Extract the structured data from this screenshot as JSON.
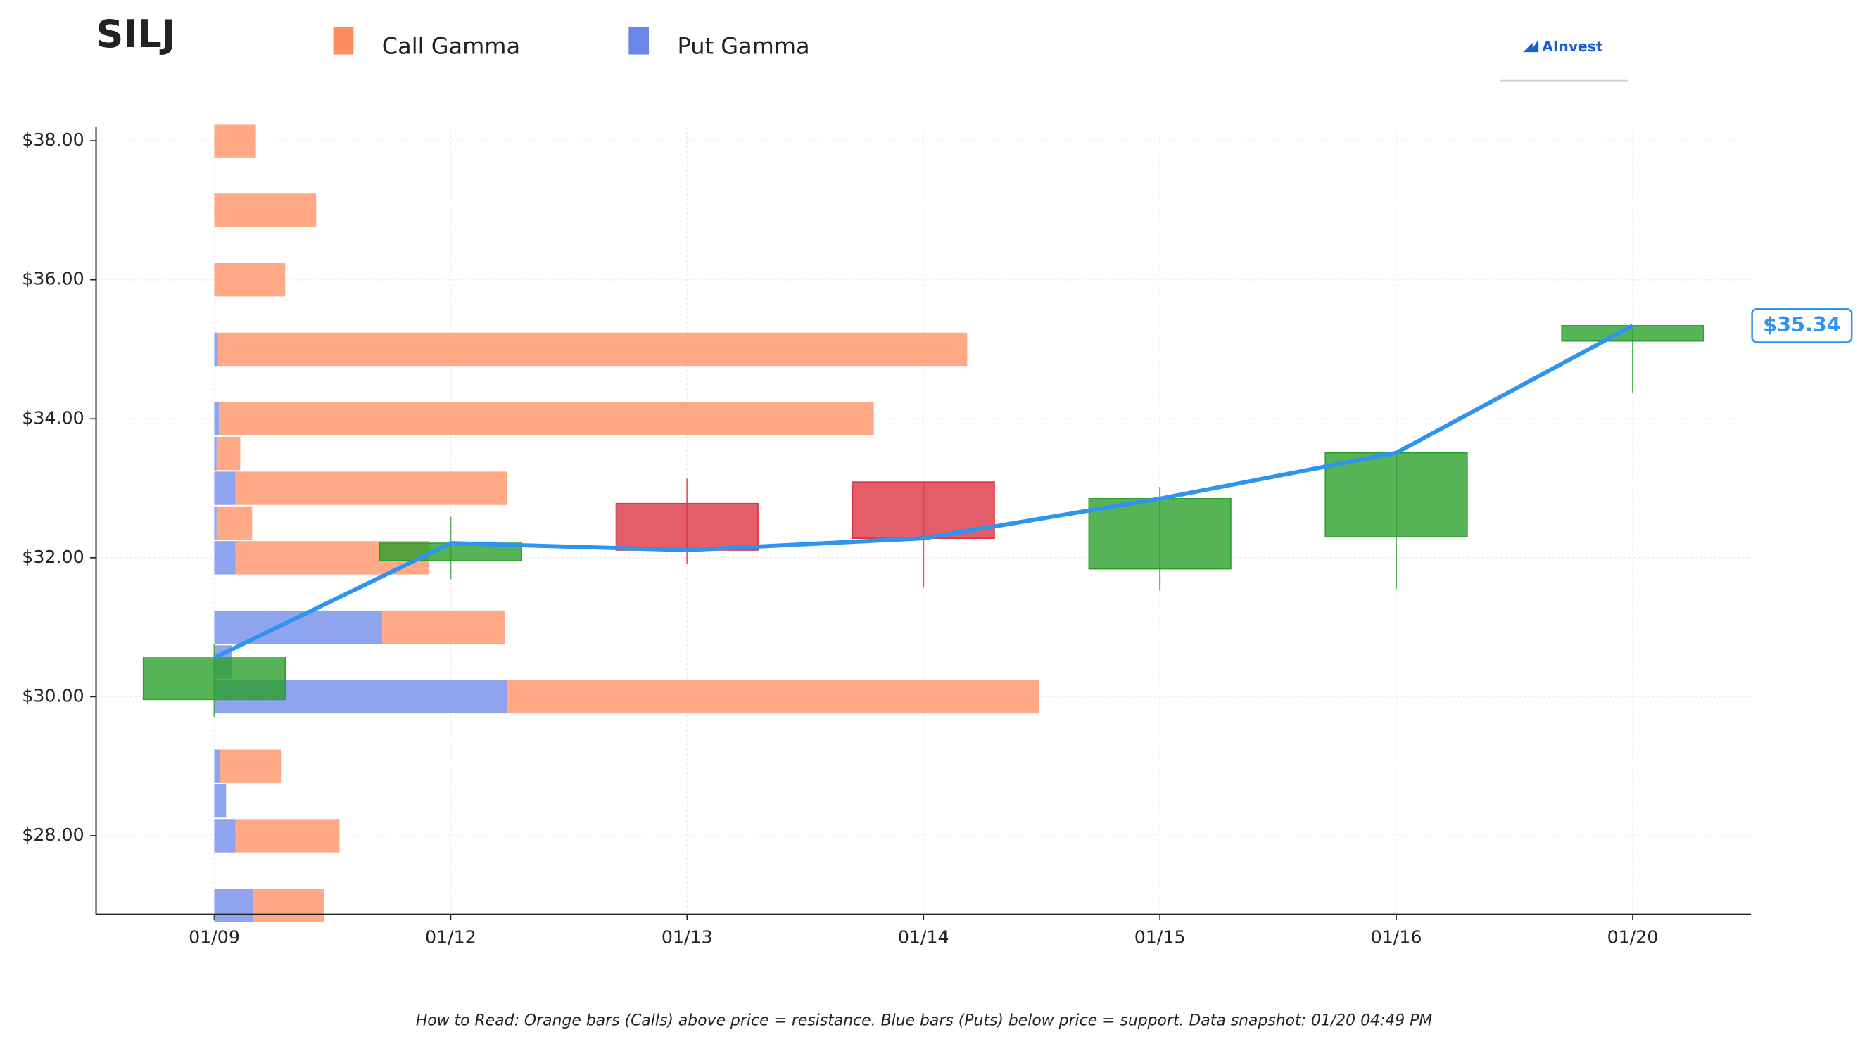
{
  "chart_data": {
    "type": "candlestick",
    "title": "SILJ",
    "brand": "AInvest",
    "footnote": "How to Read: Orange bars (Calls) above price = resistance. Blue bars (Puts) below price = support. Data snapshot: 01/20 04:49 PM",
    "categories": [
      "01/09",
      "01/12",
      "01/13",
      "01/14",
      "01/15",
      "01/16",
      "01/20"
    ],
    "open": [
      29.96,
      31.96,
      32.78,
      33.09,
      31.84,
      32.3,
      35.12
    ],
    "high": [
      30.76,
      32.59,
      33.14,
      33.09,
      33.02,
      33.51,
      35.34
    ],
    "low": [
      29.71,
      31.69,
      31.91,
      31.57,
      31.53,
      31.55,
      34.37
    ],
    "close": [
      30.56,
      32.21,
      32.11,
      32.28,
      32.85,
      33.51,
      35.34
    ],
    "last_label": "$35.34",
    "up_color": "#2ca02c",
    "down_color": "#dc3545",
    "line_color": "#2f93f0",
    "gamma": {
      "strikes": [
        38,
        37,
        36,
        35,
        34,
        33.5,
        33,
        32.5,
        32,
        31,
        30.5,
        30,
        29,
        28.5,
        28,
        27
      ],
      "series": [
        {
          "name": "Call Gamma",
          "color": "#ff8c5f",
          "values": [
            0.176,
            0.431,
            0.3,
            3.17,
            2.77,
            0.1,
            1.15,
            0.15,
            0.82,
            0.52,
            0,
            2.25,
            0.26,
            0,
            0.44,
            0.3
          ]
        },
        {
          "name": "Put Gamma",
          "color": "#6a86e8",
          "values": [
            0,
            0,
            0,
            0.015,
            0.02,
            0.01,
            0.09,
            0.01,
            0.09,
            0.71,
            0.075,
            1.24,
            0.025,
            0.05,
            0.09,
            0.165
          ]
        }
      ]
    },
    "ylim": [
      26.87,
      38.2
    ],
    "yticks": [
      {
        "value": 28,
        "label": "$28.00"
      },
      {
        "value": 30,
        "label": "$30.00"
      },
      {
        "value": 32,
        "label": "$32.00"
      },
      {
        "value": 34,
        "label": "$34.00"
      },
      {
        "value": 36,
        "label": "$36.00"
      },
      {
        "value": 38,
        "label": "$38.00"
      }
    ],
    "grid": true
  }
}
